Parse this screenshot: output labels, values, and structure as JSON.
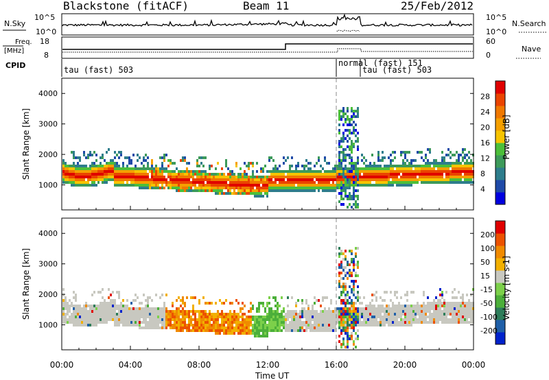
{
  "header": {
    "station": "Blackstone (fitACF)",
    "beam": "Beam 11",
    "date": "25/Feb/2012"
  },
  "panels": {
    "nsky": {
      "label": "N.Sky",
      "ticks": [
        "10^5",
        "10^0"
      ],
      "right_label": "N.Search",
      "right_ticks": [
        "10^5",
        "10^0"
      ]
    },
    "freq": {
      "label_line1": "Freq.",
      "label_line2": "[MHz]",
      "ticks": [
        "18",
        "8"
      ],
      "right_label": "Nave",
      "right_ticks": [
        "60",
        "0"
      ]
    },
    "cpid": {
      "label": "CPID",
      "modes": [
        {
          "text": "tau (fast) 503",
          "start_hour": 0.0
        },
        {
          "text": "normal (fast) 151",
          "start_hour": 16.0
        },
        {
          "text": "tau (fast) 503",
          "start_hour": 17.4
        }
      ]
    }
  },
  "chart_data": [
    {
      "type": "heatmap",
      "name": "power",
      "ylabel": "Slant Range [km]",
      "yticks": [
        "1000",
        "2000",
        "3000",
        "4000"
      ],
      "ylim": [
        180,
        4500
      ],
      "xlim": [
        0,
        24
      ],
      "colorbar": {
        "label": "Power [dB]",
        "ticks": [
          "4",
          "8",
          "12",
          "16",
          "20",
          "24",
          "28"
        ],
        "colors": [
          "#0000e0",
          "#1f4aa8",
          "#2e7d8c",
          "#3d9a5a",
          "#4cbf3a",
          "#f7c400",
          "#f5a000",
          "#f07800",
          "#ea4400",
          "#e00000"
        ]
      }
    },
    {
      "type": "heatmap",
      "name": "velocity",
      "ylabel": "Slant Range [km]",
      "yticks": [
        "1000",
        "2000",
        "3000",
        "4000"
      ],
      "ylim": [
        180,
        4500
      ],
      "xlim": [
        0,
        24
      ],
      "xticks": [
        "00:00",
        "04:00",
        "08:00",
        "12:00",
        "16:00",
        "20:00",
        "00:00"
      ],
      "xlabel": "Time UT",
      "colorbar": {
        "label": "Velocity [m s-1]",
        "ticks": [
          "200",
          "100",
          "50",
          "15",
          "-15",
          "-50",
          "-100",
          "-200"
        ],
        "colors": [
          "#0022cc",
          "#1f5fa8",
          "#2e7d5a",
          "#4caf3a",
          "#7cd04a",
          "#c8c8c0",
          "#f2b000",
          "#f08a00",
          "#ec5200",
          "#e00000"
        ]
      }
    }
  ]
}
